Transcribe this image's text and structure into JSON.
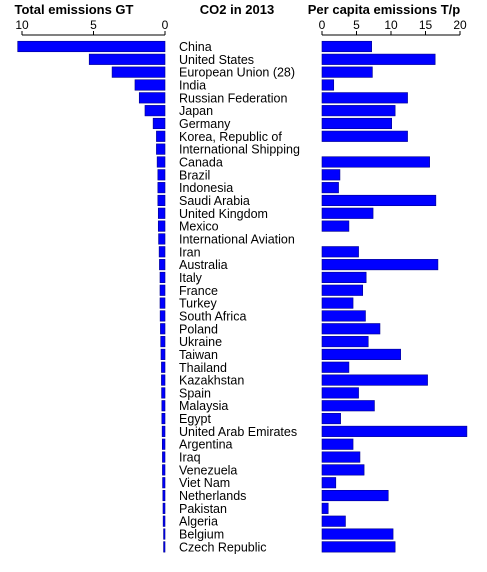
{
  "chart_data": [
    {
      "type": "bar",
      "orientation": "horizontal",
      "title": "Total emissions GT",
      "center_title": "CO2 in 2013",
      "xlim": [
        0,
        10.5
      ],
      "axis_reversed": true,
      "ticks": [
        "10",
        "5",
        "0"
      ],
      "categories": [
        "China",
        "United States",
        "European Union (28)",
        "India",
        "Russian Federation",
        "Japan",
        "Germany",
        "Korea, Republic of",
        "International Shipping",
        "Canada",
        "Brazil",
        "Indonesia",
        "Saudi Arabia",
        "United Kingdom",
        "Mexico",
        "International Aviation",
        "Iran",
        "Australia",
        "Italy",
        "France",
        "Turkey",
        "South Africa",
        "Poland",
        "Ukraine",
        "Taiwan",
        "Thailand",
        "Kazakhstan",
        "Spain",
        "Malaysia",
        "Egypt",
        "United Arab Emirates",
        "Argentina",
        "Iraq",
        "Venezuela",
        "Viet Nam",
        "Netherlands",
        "Pakistan",
        "Algeria",
        "Belgium",
        "Czech Republic"
      ],
      "values": [
        10.3,
        5.3,
        3.7,
        2.1,
        1.8,
        1.4,
        0.83,
        0.6,
        0.6,
        0.55,
        0.5,
        0.5,
        0.5,
        0.47,
        0.47,
        0.45,
        0.41,
        0.39,
        0.35,
        0.35,
        0.35,
        0.34,
        0.32,
        0.3,
        0.28,
        0.25,
        0.25,
        0.24,
        0.22,
        0.22,
        0.2,
        0.19,
        0.18,
        0.18,
        0.17,
        0.15,
        0.14,
        0.13,
        0.1,
        0.1
      ]
    },
    {
      "type": "bar",
      "orientation": "horizontal",
      "title": "Per capita emissions T/p",
      "xlim": [
        0,
        21
      ],
      "ticks": [
        "0",
        "5",
        "10",
        "15",
        "20"
      ],
      "categories": [
        "China",
        "United States",
        "European Union (28)",
        "India",
        "Russian Federation",
        "Japan",
        "Germany",
        "Korea, Republic of",
        "International Shipping",
        "Canada",
        "Brazil",
        "Indonesia",
        "Saudi Arabia",
        "United Kingdom",
        "Mexico",
        "International Aviation",
        "Iran",
        "Australia",
        "Italy",
        "France",
        "Turkey",
        "South Africa",
        "Poland",
        "Ukraine",
        "Taiwan",
        "Thailand",
        "Kazakhstan",
        "Spain",
        "Malaysia",
        "Egypt",
        "United Arab Emirates",
        "Argentina",
        "Iraq",
        "Venezuela",
        "Viet Nam",
        "Netherlands",
        "Pakistan",
        "Algeria",
        "Belgium",
        "Czech Republic"
      ],
      "values": [
        7.2,
        16.4,
        7.3,
        1.7,
        12.4,
        10.6,
        10.1,
        12.4,
        0,
        15.6,
        2.6,
        2.4,
        16.5,
        7.4,
        3.9,
        0,
        5.3,
        16.8,
        6.4,
        5.9,
        4.5,
        6.3,
        8.4,
        6.7,
        11.4,
        3.9,
        15.3,
        5.3,
        7.6,
        2.7,
        21.0,
        4.5,
        5.5,
        6.1,
        2.0,
        9.6,
        0.9,
        3.4,
        10.3,
        10.6
      ]
    }
  ]
}
